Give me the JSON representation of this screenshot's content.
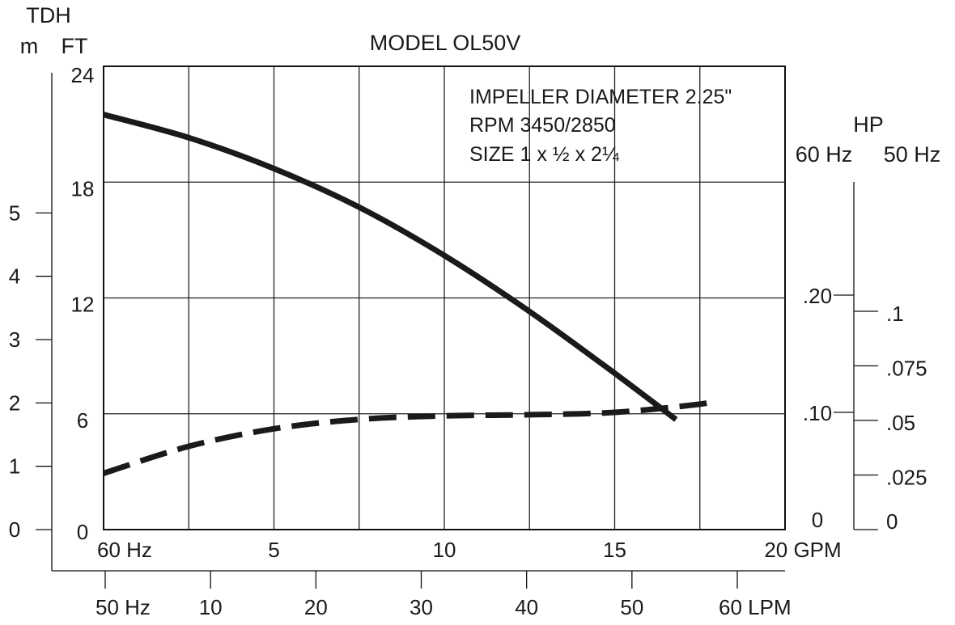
{
  "chart_data": {
    "type": "line",
    "title": "MODEL OL50V",
    "annotations": [
      "IMPELLER DIAMETER 2.25\"",
      "RPM 3450/2850",
      "SIZE 1 x ½ x 2¼"
    ],
    "left_axis": {
      "header": "TDH",
      "m_unit": "m",
      "ft_unit": "FT",
      "m_ticks": [
        "0",
        "1",
        "2",
        "3",
        "4",
        "5"
      ],
      "m_values": [
        0,
        1,
        2,
        3,
        4,
        5
      ],
      "ft_ticks": [
        "0",
        "6",
        "12",
        "18",
        "24"
      ],
      "ft_values": [
        0,
        6,
        12,
        18,
        24
      ],
      "ylim_ft": [
        0,
        24
      ]
    },
    "bottom_axis_gpm": {
      "ticks": [
        "60 Hz",
        "5",
        "10",
        "15",
        "20 GPM"
      ],
      "values": [
        0,
        5,
        10,
        15,
        20
      ],
      "xlim": [
        0,
        20
      ]
    },
    "bottom_axis_lpm": {
      "ticks": [
        "50 Hz",
        "10",
        "20",
        "30",
        "40",
        "50",
        "60 LPM"
      ],
      "values": [
        0,
        10,
        20,
        30,
        40,
        50,
        60
      ]
    },
    "right_axis": {
      "header": "HP",
      "hz60_label": "60 Hz",
      "hz50_label": "50 Hz",
      "hp60_ticks": [
        "0",
        ".10",
        ".20"
      ],
      "hp60_values": [
        0,
        0.1,
        0.2
      ],
      "hp50_ticks": [
        "0",
        ".025",
        ".05",
        ".075",
        ".1"
      ],
      "hp50_values": [
        0,
        0.025,
        0.05,
        0.075,
        0.1
      ]
    },
    "grid": true,
    "series": [
      {
        "kind": "head",
        "style": "solid",
        "axis": "ft",
        "x_gpm": [
          0,
          2.5,
          5,
          7.5,
          10,
          12.5,
          15,
          16.8
        ],
        "y": [
          21.5,
          20.3,
          18.7,
          16.7,
          14.2,
          11.3,
          8.1,
          5.7
        ]
      },
      {
        "kind": "horsepower",
        "style": "dashed",
        "axis": "hp60",
        "x_gpm": [
          0,
          2.5,
          5,
          7.5,
          10,
          12.5,
          15,
          17.5,
          18
        ],
        "y": [
          0.048,
          0.071,
          0.086,
          0.094,
          0.097,
          0.098,
          0.1,
          0.107,
          0.111
        ]
      }
    ]
  }
}
